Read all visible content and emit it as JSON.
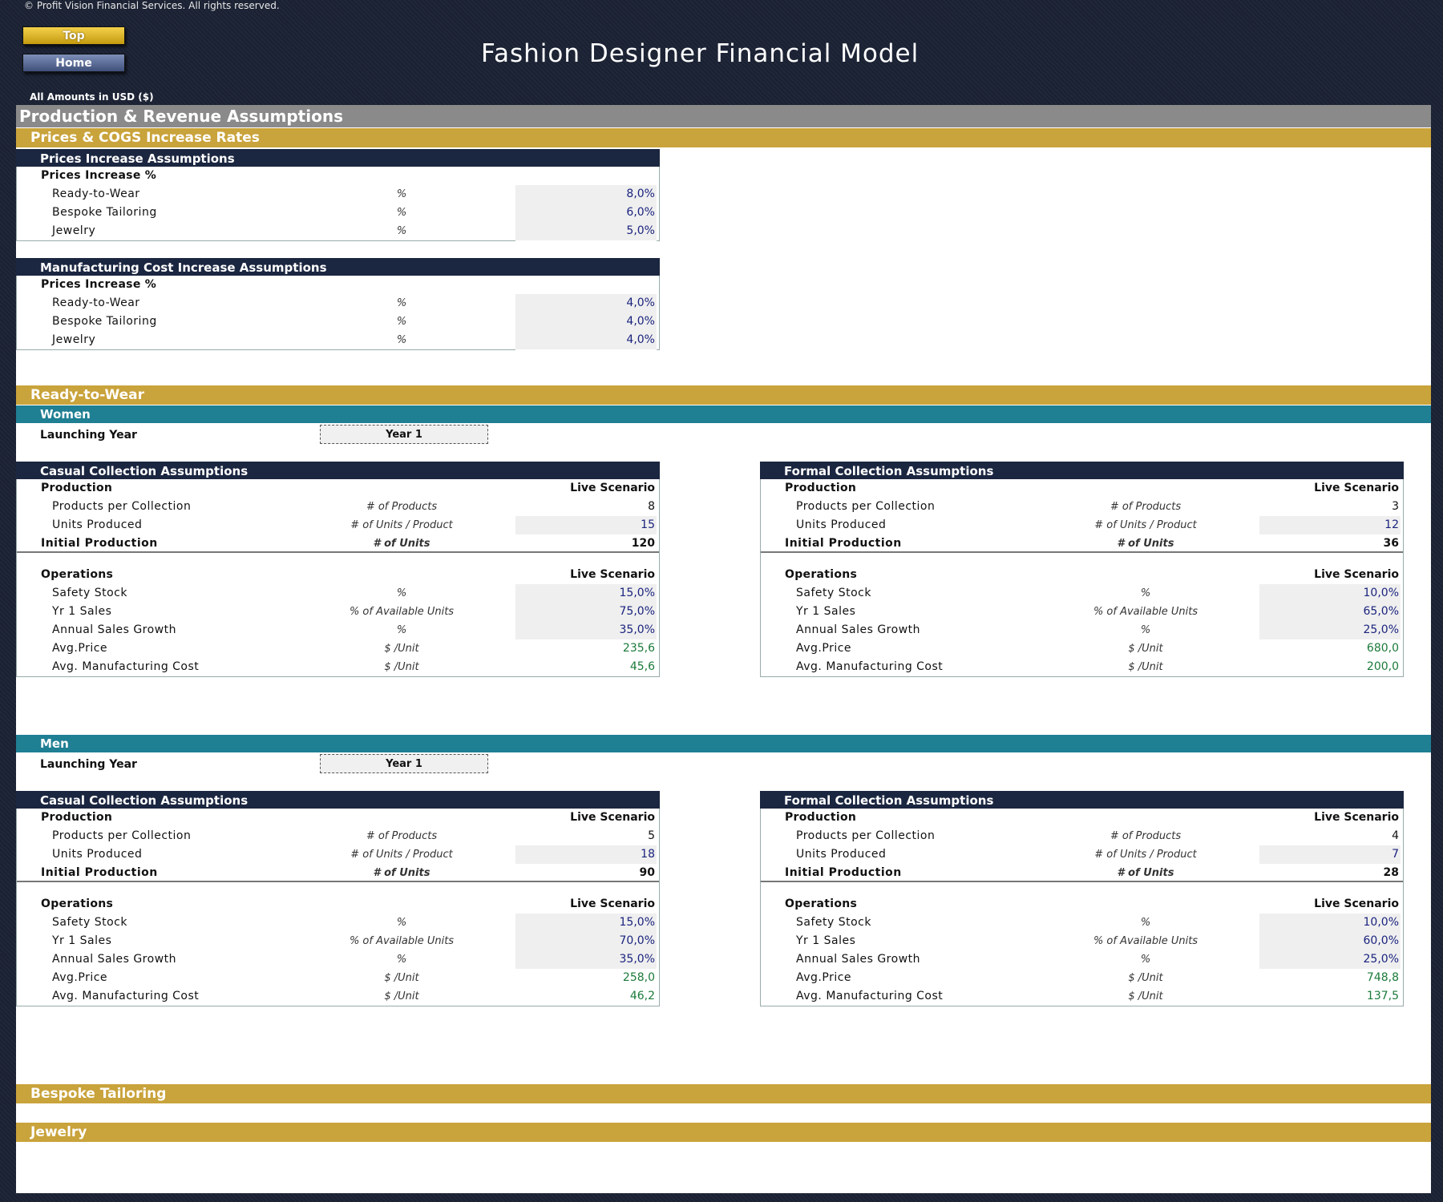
{
  "header": {
    "copyright": "© Profit Vision Financial Services. All rights reserved.",
    "top_button": "Top",
    "home_button": "Home",
    "title": "Fashion Designer Financial Model",
    "amounts": "All Amounts in  USD ($)"
  },
  "sections": {
    "main": "Production & Revenue Assumptions",
    "prices_cogs": "Prices & COGS Increase Rates",
    "rtw": "Ready-to-Wear",
    "bespoke": "Bespoke Tailoring",
    "jewelry": "Jewelry"
  },
  "price_increase": {
    "title": "Prices Increase Assumptions",
    "subtitle": "Prices Increase %",
    "rows": [
      {
        "label": "Ready-to-Wear",
        "unit": "%",
        "value": "8,0%"
      },
      {
        "label": "Bespoke Tailoring",
        "unit": "%",
        "value": "6,0%"
      },
      {
        "label": "Jewelry",
        "unit": "%",
        "value": "5,0%"
      }
    ]
  },
  "mfg_increase": {
    "title": "Manufacturing Cost Increase Assumptions",
    "subtitle": "Prices Increase %",
    "rows": [
      {
        "label": "Ready-to-Wear",
        "unit": "%",
        "value": "4,0%"
      },
      {
        "label": "Bespoke Tailoring",
        "unit": "%",
        "value": "4,0%"
      },
      {
        "label": "Jewelry",
        "unit": "%",
        "value": "4,0%"
      }
    ]
  },
  "labels": {
    "launching_year": "Launching Year",
    "production": "Production",
    "operations": "Operations",
    "live_scenario": "Live Scenario",
    "products_per_collection": "Products per Collection",
    "units_produced": "Units Produced",
    "initial_production": "Initial Production",
    "safety_stock": "Safety Stock",
    "yr1_sales": "Yr 1 Sales",
    "annual_growth": "Annual Sales Growth",
    "avg_price": "Avg.Price",
    "avg_mfg_cost": "Avg. Manufacturing Cost",
    "u_products": "# of Products",
    "u_units_product": "# of Units / Product",
    "u_units": "# of Units",
    "u_pct": "%",
    "u_avail": "% of Available Units",
    "u_unit_price": "$ /Unit",
    "casual_title": "Casual Collection Assumptions",
    "formal_title": "Formal Collection Assumptions"
  },
  "women": {
    "title": "Women",
    "launch_year": "Year 1",
    "casual": {
      "products": "8",
      "units": "15",
      "initial": "120",
      "safety": "15,0%",
      "yr1": "75,0%",
      "growth": "35,0%",
      "price": "235,6",
      "cost": "45,6"
    },
    "formal": {
      "products": "3",
      "units": "12",
      "initial": "36",
      "safety": "10,0%",
      "yr1": "65,0%",
      "growth": "25,0%",
      "price": "680,0",
      "cost": "200,0"
    }
  },
  "men": {
    "title": "Men",
    "launch_year": "Year 1",
    "casual": {
      "products": "5",
      "units": "18",
      "initial": "90",
      "safety": "15,0%",
      "yr1": "70,0%",
      "growth": "35,0%",
      "price": "258,0",
      "cost": "46,2"
    },
    "formal": {
      "products": "4",
      "units": "7",
      "initial": "28",
      "safety": "10,0%",
      "yr1": "60,0%",
      "growth": "25,0%",
      "price": "748,8",
      "cost": "137,5"
    }
  }
}
